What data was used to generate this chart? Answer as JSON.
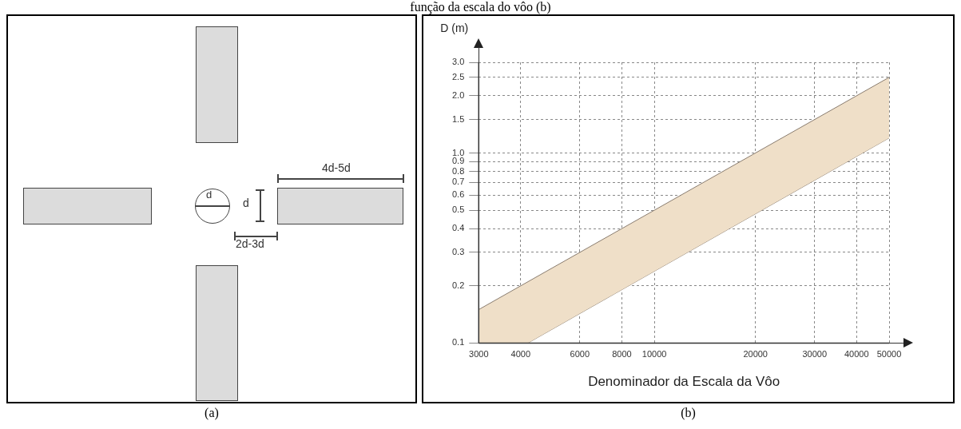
{
  "chart_data": [
    {
      "type": "other",
      "annotations": [
        "d",
        "d",
        "2d-3d",
        "4d-5d",
        "(a)"
      ]
    },
    {
      "type": "area",
      "title": "função da escala do vôo (b)",
      "xlabel": "Denominador da Escala da Vôo",
      "ylabel": "D (m)",
      "log": "xy",
      "series": [
        {
          "type": "area",
          "color": "#efdfc8",
          "x": [
            3000,
            50000
          ],
          "values": [
            0.15,
            2.5
          ]
        },
        {
          "type": "line",
          "color": "#8a7d70",
          "x": [
            3000,
            4200,
            50000
          ],
          "values": [
            0.1,
            0.1,
            1.2
          ]
        }
      ],
      "xlim": [
        3000,
        50000
      ],
      "xticks": [
        3000,
        4000,
        6000,
        8000,
        10000,
        20000,
        30000,
        40000,
        50000
      ],
      "ylim": [
        0.1,
        3.0
      ],
      "yticks": [
        0.1,
        0.2,
        0.3,
        0.4,
        0.5,
        0.6,
        0.7,
        0.8,
        0.9,
        {
          "value": 1,
          "label": "1.0"
        },
        1.5,
        {
          "value": 2,
          "label": "2.0"
        },
        2.5,
        {
          "value": 3,
          "label": "3.0"
        }
      ],
      "grid": true,
      "legend": false,
      "annotations": [
        "(b)"
      ]
    }
  ]
}
